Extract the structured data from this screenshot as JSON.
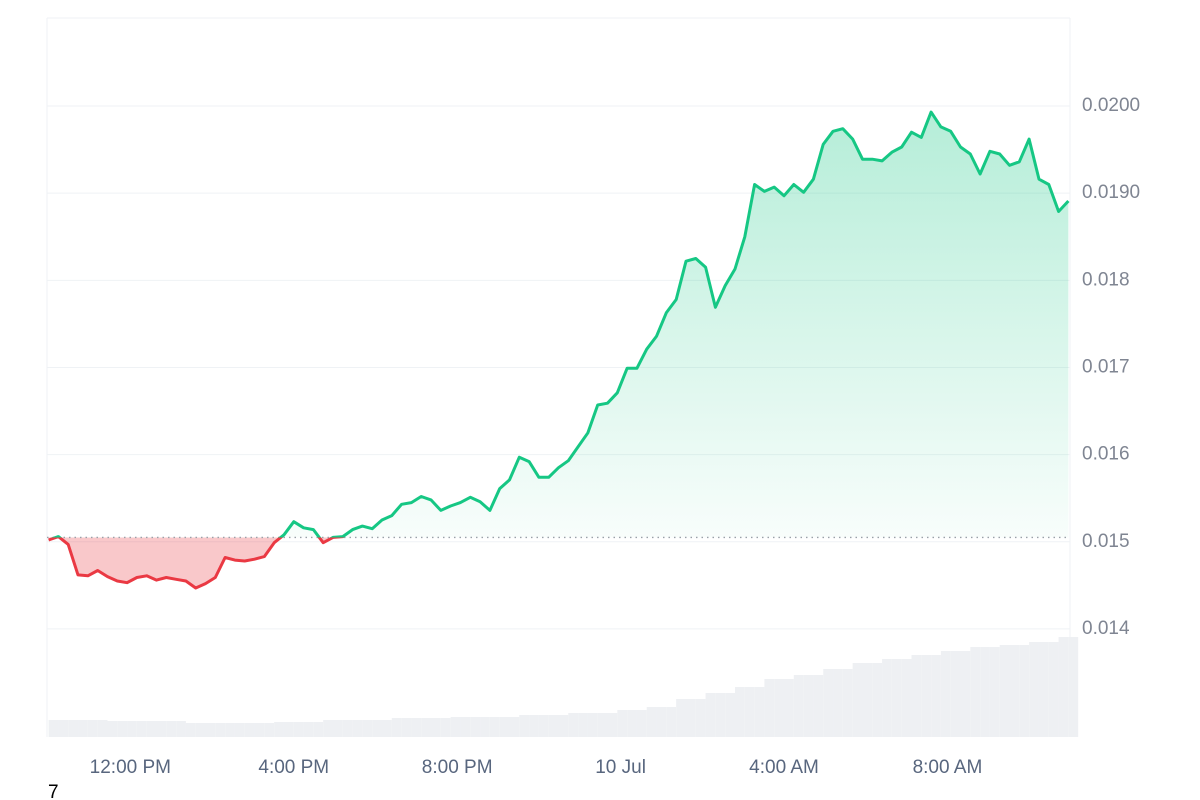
{
  "chart_data": {
    "type": "area-line",
    "x": [
      10,
      10.24,
      10.48,
      10.72,
      10.96,
      11.2,
      11.44,
      11.68,
      11.92,
      12.16,
      12.4,
      12.64,
      12.88,
      13.12,
      13.36,
      13.6,
      13.84,
      14.08,
      14.32,
      14.56,
      14.8,
      15.04,
      15.28,
      15.52,
      15.76,
      16,
      16.24,
      16.48,
      16.72,
      16.96,
      17.2,
      17.44,
      17.68,
      17.92,
      18.16,
      18.4,
      18.64,
      18.88,
      19.12,
      19.36,
      19.6,
      19.84,
      20.08,
      20.32,
      20.56,
      20.8,
      21.04,
      21.28,
      21.52,
      21.76,
      22,
      22.24,
      22.48,
      22.72,
      22.96,
      23.2,
      23.44,
      23.68,
      23.92,
      24.16,
      24.4,
      24.64,
      24.88,
      25.12,
      25.36,
      25.6,
      25.84,
      26.08,
      26.32,
      26.56,
      26.8,
      27.04,
      27.28,
      27.52,
      27.76,
      28,
      28.24,
      28.48,
      28.72,
      28.96,
      29.2,
      29.44,
      29.68,
      29.92,
      30.16,
      30.4,
      30.64,
      30.88,
      31.12,
      31.36,
      31.6,
      31.84,
      32.08,
      32.32,
      32.56,
      32.8,
      33.04,
      33.28,
      33.52,
      33.76,
      34,
      34.24,
      34.48,
      34.72,
      34.96
    ],
    "series": [
      {
        "color": "#16c784",
        "below_color": "#ea3943",
        "values": [
          0.01502,
          0.01506,
          0.01497,
          0.01462,
          0.01461,
          0.01467,
          0.0146,
          0.01455,
          0.01453,
          0.01459,
          0.01461,
          0.01456,
          0.01459,
          0.01457,
          0.01455,
          0.01447,
          0.01452,
          0.01459,
          0.01482,
          0.01479,
          0.01478,
          0.0148,
          0.01483,
          0.01499,
          0.01508,
          0.01523,
          0.01516,
          0.01514,
          0.01499,
          0.01505,
          0.01506,
          0.01514,
          0.01518,
          0.01515,
          0.01525,
          0.0153,
          0.01543,
          0.01545,
          0.01552,
          0.01548,
          0.01536,
          0.01541,
          0.01545,
          0.01551,
          0.01546,
          0.01536,
          0.01561,
          0.01571,
          0.01597,
          0.01592,
          0.01574,
          0.01574,
          0.01585,
          0.01593,
          0.01609,
          0.01625,
          0.01657,
          0.01659,
          0.01671,
          0.01699,
          0.01699,
          0.01721,
          0.01736,
          0.01763,
          0.01778,
          0.01822,
          0.01825,
          0.01815,
          0.01769,
          0.01794,
          0.01813,
          0.0185,
          0.0191,
          0.01902,
          0.01907,
          0.01897,
          0.0191,
          0.01901,
          0.01916,
          0.01956,
          0.01971,
          0.01974,
          0.01962,
          0.01939,
          0.01939,
          0.01937,
          0.01947,
          0.01953,
          0.0197,
          0.01964,
          0.01993,
          0.01976,
          0.01971,
          0.01953,
          0.01945,
          0.01922,
          0.01948,
          0.01945,
          0.01932,
          0.01936,
          0.01962,
          0.01916,
          0.0191,
          0.01879,
          0.01891
        ]
      }
    ],
    "baseline": 0.01505,
    "volume": {
      "color": "#eef0f3",
      "ylim": [
        0,
        200
      ],
      "values": [
        17,
        17,
        17,
        17,
        17,
        17,
        16,
        16,
        16,
        16,
        16,
        16,
        16,
        16,
        14,
        14,
        14,
        14,
        14,
        14,
        14,
        14,
        14,
        15,
        15,
        15,
        15,
        15,
        17,
        17,
        17,
        17,
        17,
        17,
        17,
        19,
        19,
        19,
        19,
        19,
        19,
        20,
        20,
        20,
        20,
        20,
        20,
        20,
        22,
        22,
        22,
        22,
        22,
        24,
        24,
        24,
        24,
        24,
        27,
        27,
        27,
        30,
        30,
        30,
        38,
        38,
        38,
        44,
        44,
        44,
        50,
        50,
        50,
        58,
        58,
        58,
        62,
        62,
        62,
        68,
        68,
        68,
        74,
        74,
        74,
        78,
        78,
        78,
        82,
        82,
        82,
        86,
        86,
        86,
        90,
        90,
        90,
        92,
        92,
        92,
        95,
        95,
        95,
        100,
        100
      ]
    },
    "xlim": [
      9.96,
      35.0
    ],
    "xticks": [
      {
        "value": 12,
        "label": "12:00 PM"
      },
      {
        "value": 16,
        "label": "4:00 PM"
      },
      {
        "value": 20,
        "label": "8:00 PM"
      },
      {
        "value": 24,
        "label": "10 Jul"
      },
      {
        "value": 28,
        "label": "4:00 AM"
      },
      {
        "value": 32,
        "label": "8:00 AM"
      }
    ],
    "ylim": [
      0.01276,
      0.02101
    ],
    "yticks": [
      0.014,
      0.015,
      0.016,
      0.017,
      0.018,
      {
        "value": 0.019,
        "label": "0.0190"
      },
      {
        "value": 0.02,
        "label": "0.0200"
      }
    ],
    "grid": true
  },
  "corner_text": "7"
}
